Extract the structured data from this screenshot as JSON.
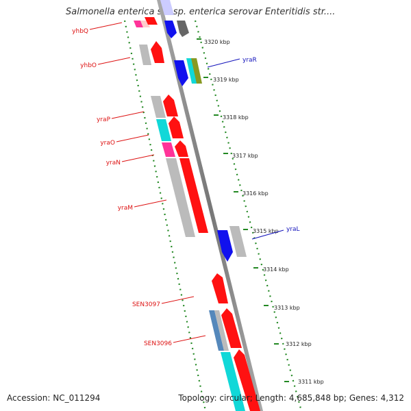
{
  "title": "Salmonella enterica subsp. enterica serovar Enteritidis str....",
  "accession_label": "Accession: NC_011294",
  "summary_label": "Topology: circular; Length: 4,685,848 bp; Genes: 4,312",
  "scale_unit": "kbp",
  "ticks": [
    {
      "label": "3320 kbp"
    },
    {
      "label": "3319 kbp"
    },
    {
      "label": "3318 kbp"
    },
    {
      "label": "3317 kbp"
    },
    {
      "label": "3316 kbp"
    },
    {
      "label": "3315 kbp"
    },
    {
      "label": "3314 kbp"
    },
    {
      "label": "3313 kbp"
    },
    {
      "label": "3312 kbp"
    },
    {
      "label": "3311 kbp"
    }
  ],
  "gene_labels_reverse": [
    "yhbQ",
    "yhbO",
    "yraP",
    "yraO",
    "yraN",
    "yraM",
    "SEN3097",
    "SEN3096"
  ],
  "gene_labels_forward": [
    "yraR",
    "yraL"
  ],
  "colors": {
    "reverse_label": "#dd1111",
    "forward_label": "#1111bb",
    "red": "#ff1111",
    "pink": "#ff3399",
    "cyan": "#11d8d8",
    "grey": "#bbbbbb",
    "blue": "#1111ee",
    "olive": "#889922",
    "steel": "#5588bb",
    "dark": "#666666",
    "dots": "#228822"
  }
}
